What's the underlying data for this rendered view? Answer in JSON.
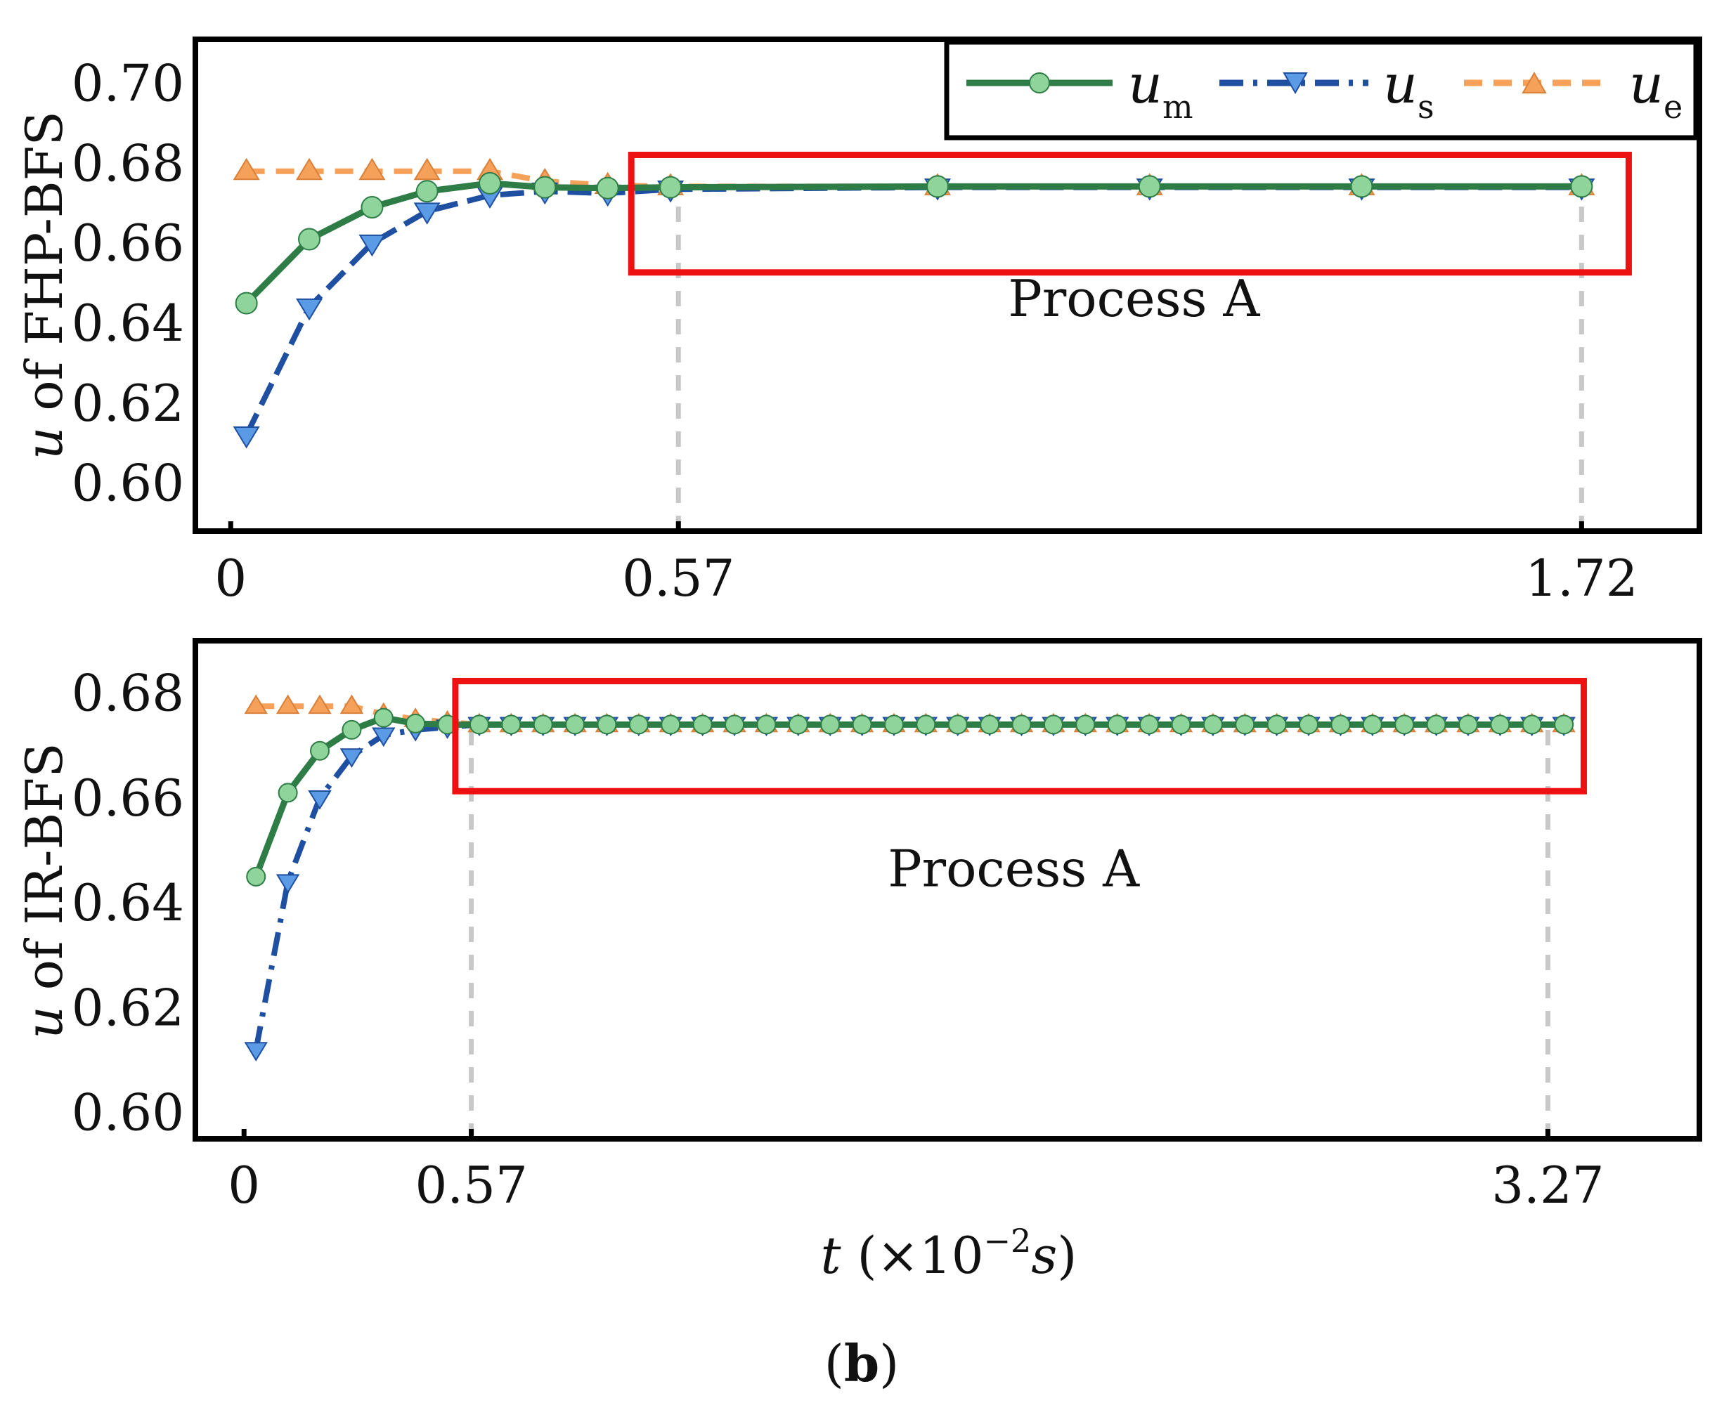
{
  "colors": {
    "um": "#2e7d46",
    "um_marker": "#8fd49a",
    "us": "#1f4fa0",
    "us_marker": "#5b9be6",
    "ue": "#f5a15a",
    "ue_marker": "#f5a15a",
    "highlight": "#ee1111",
    "guide": "#c8c8c8",
    "frame": "#000000"
  },
  "legend": [
    {
      "series": "um",
      "base": "u",
      "sub": "m"
    },
    {
      "series": "us",
      "base": "u",
      "sub": "s"
    },
    {
      "series": "ue",
      "base": "u",
      "sub": "e"
    }
  ],
  "xlabel": {
    "var": "t",
    "open": " (×10",
    "sup": "−2",
    "unit": "s",
    "close": ")"
  },
  "caption": {
    "open": "(",
    "letter": "b",
    "close": ")"
  },
  "chart_data": [
    {
      "type": "line",
      "id": "fhp",
      "ylabel": {
        "var": "u",
        "rest": " of FHP-BFS"
      },
      "xlim": [
        -0.045,
        1.87
      ],
      "ylim": [
        0.588,
        0.711
      ],
      "yticks": [
        0.6,
        0.62,
        0.64,
        0.66,
        0.68,
        0.7
      ],
      "ytick_labels": [
        "0.60",
        "0.62",
        "0.64",
        "0.66",
        "0.68",
        "0.70"
      ],
      "xticks": [
        0,
        0.57,
        1.72
      ],
      "xtick_labels": [
        "0",
        "0.57",
        "1.72"
      ],
      "guides": [
        0.57,
        1.72
      ],
      "region": {
        "x": [
          0.51,
          1.78
        ],
        "y": [
          0.6527,
          0.6821
        ],
        "label": "Process A",
        "label_at": [
          1.15,
          0.6418
        ]
      },
      "series": [
        {
          "key": "um",
          "name": "u_m",
          "x": [
            0.02,
            0.1,
            0.18,
            0.25,
            0.33,
            0.4,
            0.48,
            0.56,
            0.9,
            1.17,
            1.44,
            1.72
          ],
          "y": [
            0.645,
            0.661,
            0.669,
            0.673,
            0.675,
            0.674,
            0.6738,
            0.674,
            0.6742,
            0.6742,
            0.6742,
            0.6742
          ]
        },
        {
          "key": "us",
          "name": "u_s",
          "x": [
            0.02,
            0.1,
            0.18,
            0.25,
            0.33,
            0.4,
            0.48,
            0.56,
            0.9,
            1.17,
            1.44,
            1.72
          ],
          "y": [
            0.612,
            0.644,
            0.66,
            0.668,
            0.672,
            0.673,
            0.6725,
            0.6735,
            0.674,
            0.674,
            0.674,
            0.674
          ]
        },
        {
          "key": "ue",
          "name": "u_e",
          "x": [
            0.02,
            0.1,
            0.18,
            0.25,
            0.33,
            0.4,
            0.48,
            0.56,
            0.9,
            1.17,
            1.44,
            1.72
          ],
          "y": [
            0.678,
            0.678,
            0.678,
            0.678,
            0.678,
            0.6755,
            0.6745,
            0.6742,
            0.6742,
            0.6742,
            0.6742,
            0.6742
          ]
        }
      ]
    },
    {
      "type": "line",
      "id": "ir",
      "ylabel": {
        "var": "u",
        "rest": " of IR-BFS"
      },
      "xlim": [
        -0.122,
        3.65
      ],
      "ylim": [
        0.595,
        0.69
      ],
      "yticks": [
        0.6,
        0.62,
        0.64,
        0.66,
        0.68
      ],
      "ytick_labels": [
        "0.60",
        "0.62",
        "0.64",
        "0.66",
        "0.68"
      ],
      "xticks": [
        0,
        0.57,
        3.27
      ],
      "xtick_labels": [
        "0",
        "0.57",
        "3.27"
      ],
      "guides": [
        0.57,
        3.27
      ],
      "region": {
        "x": [
          0.53,
          3.36
        ],
        "y": [
          0.6613,
          0.6823
        ],
        "label": "Process A",
        "label_at": [
          1.93,
          0.6432
        ]
      },
      "series": [
        {
          "key": "um",
          "name": "u_m",
          "x": [
            0.03,
            0.11,
            0.19,
            0.27,
            0.35,
            0.43,
            0.51,
            0.59,
            0.67,
            0.75,
            0.83,
            0.91,
            0.99,
            1.07,
            1.15,
            1.23,
            1.31,
            1.39,
            1.47,
            1.55,
            1.63,
            1.71,
            1.79,
            1.87,
            1.95,
            2.03,
            2.11,
            2.19,
            2.27,
            2.35,
            2.43,
            2.51,
            2.59,
            2.67,
            2.75,
            2.83,
            2.91,
            2.99,
            3.07,
            3.15,
            3.23,
            3.31
          ],
          "y": [
            0.645,
            0.661,
            0.669,
            0.673,
            0.6753,
            0.6742,
            0.674,
            0.674,
            0.674,
            0.674,
            0.674,
            0.674,
            0.674,
            0.674,
            0.674,
            0.674,
            0.674,
            0.674,
            0.674,
            0.674,
            0.674,
            0.674,
            0.674,
            0.674,
            0.674,
            0.674,
            0.674,
            0.674,
            0.674,
            0.674,
            0.674,
            0.674,
            0.674,
            0.674,
            0.674,
            0.674,
            0.674,
            0.674,
            0.674,
            0.674,
            0.674,
            0.674
          ]
        },
        {
          "key": "us",
          "name": "u_s",
          "x": [
            0.03,
            0.11,
            0.19,
            0.27,
            0.35,
            0.43,
            0.51,
            0.59,
            0.67,
            0.75,
            0.83,
            0.91,
            0.99,
            1.07,
            1.15,
            1.23,
            1.31,
            1.39,
            1.47,
            1.55,
            1.63,
            1.71,
            1.79,
            1.87,
            1.95,
            2.03,
            2.11,
            2.19,
            2.27,
            2.35,
            2.43,
            2.51,
            2.59,
            2.67,
            2.75,
            2.83,
            2.91,
            2.99,
            3.07,
            3.15,
            3.23,
            3.31
          ],
          "y": [
            0.612,
            0.644,
            0.66,
            0.668,
            0.672,
            0.673,
            0.6735,
            0.674,
            0.674,
            0.674,
            0.674,
            0.674,
            0.674,
            0.674,
            0.674,
            0.674,
            0.674,
            0.674,
            0.674,
            0.674,
            0.674,
            0.674,
            0.674,
            0.674,
            0.674,
            0.674,
            0.674,
            0.674,
            0.674,
            0.674,
            0.674,
            0.674,
            0.674,
            0.674,
            0.674,
            0.674,
            0.674,
            0.674,
            0.674,
            0.674,
            0.674,
            0.674
          ]
        },
        {
          "key": "ue",
          "name": "u_e",
          "x": [
            0.03,
            0.11,
            0.19,
            0.27,
            0.35,
            0.43,
            0.51,
            0.59,
            0.67,
            0.75,
            0.83,
            0.91,
            0.99,
            1.07,
            1.15,
            1.23,
            1.31,
            1.39,
            1.47,
            1.55,
            1.63,
            1.71,
            1.79,
            1.87,
            1.95,
            2.03,
            2.11,
            2.19,
            2.27,
            2.35,
            2.43,
            2.51,
            2.59,
            2.67,
            2.75,
            2.83,
            2.91,
            2.99,
            3.07,
            3.15,
            3.23,
            3.31
          ],
          "y": [
            0.6775,
            0.6775,
            0.6775,
            0.6775,
            0.676,
            0.675,
            0.6745,
            0.674,
            0.674,
            0.674,
            0.674,
            0.674,
            0.674,
            0.674,
            0.674,
            0.674,
            0.674,
            0.674,
            0.674,
            0.674,
            0.674,
            0.674,
            0.674,
            0.674,
            0.674,
            0.674,
            0.674,
            0.674,
            0.674,
            0.674,
            0.674,
            0.674,
            0.674,
            0.674,
            0.674,
            0.674,
            0.674,
            0.674,
            0.674,
            0.674,
            0.674,
            0.674
          ]
        }
      ]
    }
  ]
}
